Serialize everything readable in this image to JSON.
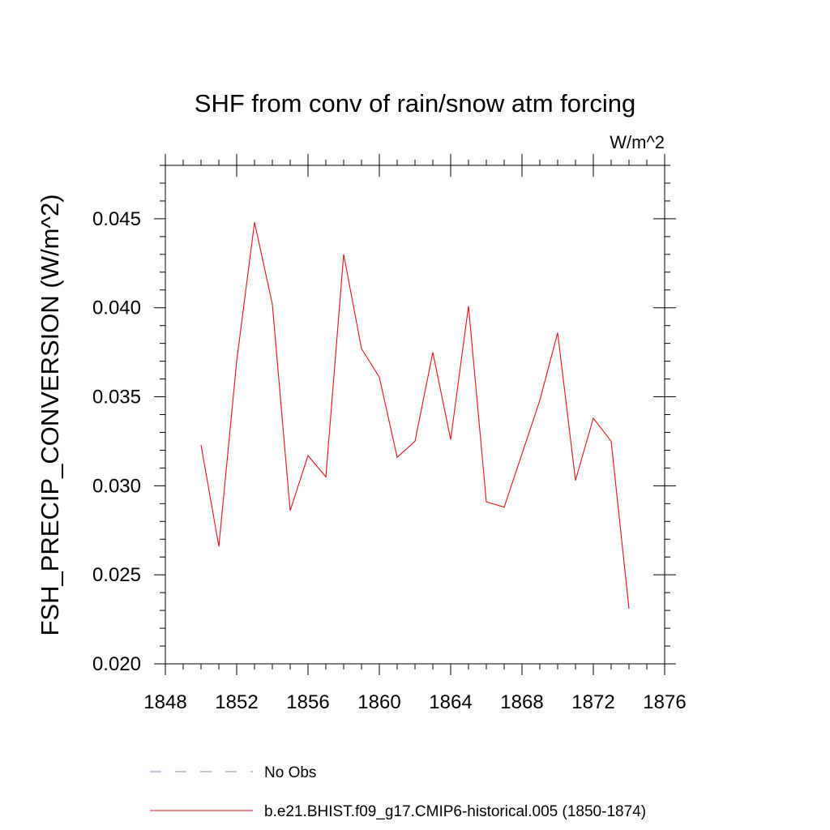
{
  "chart_data": {
    "type": "line",
    "title": "SHF from conv of rain/snow atm forcing",
    "units_label": "W/m^2",
    "xlabel": "",
    "ylabel": "FSH_PRECIP_CONVERSION  (W/m^2)",
    "xlim": [
      1848,
      1876
    ],
    "ylim": [
      0.02,
      0.048
    ],
    "xticks": [
      1848,
      1852,
      1856,
      1860,
      1864,
      1868,
      1872,
      1876
    ],
    "xtick_labels": [
      "1848",
      "1852",
      "1856",
      "1860",
      "1864",
      "1868",
      "1872",
      "1876"
    ],
    "yticks": [
      0.02,
      0.025,
      0.03,
      0.035,
      0.04,
      0.045
    ],
    "ytick_labels": [
      "0.020",
      "0.025",
      "0.030",
      "0.035",
      "0.040",
      "0.045"
    ],
    "grid": false,
    "legend_position": "bottom",
    "legend": [
      {
        "label": "No Obs",
        "style": "dashed",
        "color": "#8a82c8"
      },
      {
        "label": "b.e21.BHIST.f09_g17.CMIP6-historical.005 (1850-1874)",
        "style": "solid",
        "color": "#e8101a"
      }
    ],
    "series": [
      {
        "color": "#e8101a",
        "x": [
          1850,
          1851,
          1852,
          1853,
          1854,
          1855,
          1856,
          1857,
          1858,
          1859,
          1860,
          1861,
          1862,
          1863,
          1864,
          1865,
          1866,
          1867,
          1868,
          1869,
          1870,
          1871,
          1872,
          1873,
          1874
        ],
        "y": [
          0.0323,
          0.0266,
          0.037,
          0.0448,
          0.0402,
          0.0286,
          0.0317,
          0.0305,
          0.043,
          0.0377,
          0.0361,
          0.0316,
          0.0325,
          0.0375,
          0.0326,
          0.0401,
          0.0291,
          0.0288,
          0.0318,
          0.0348,
          0.0386,
          0.0303,
          0.0338,
          0.0325,
          0.0231
        ]
      }
    ]
  }
}
